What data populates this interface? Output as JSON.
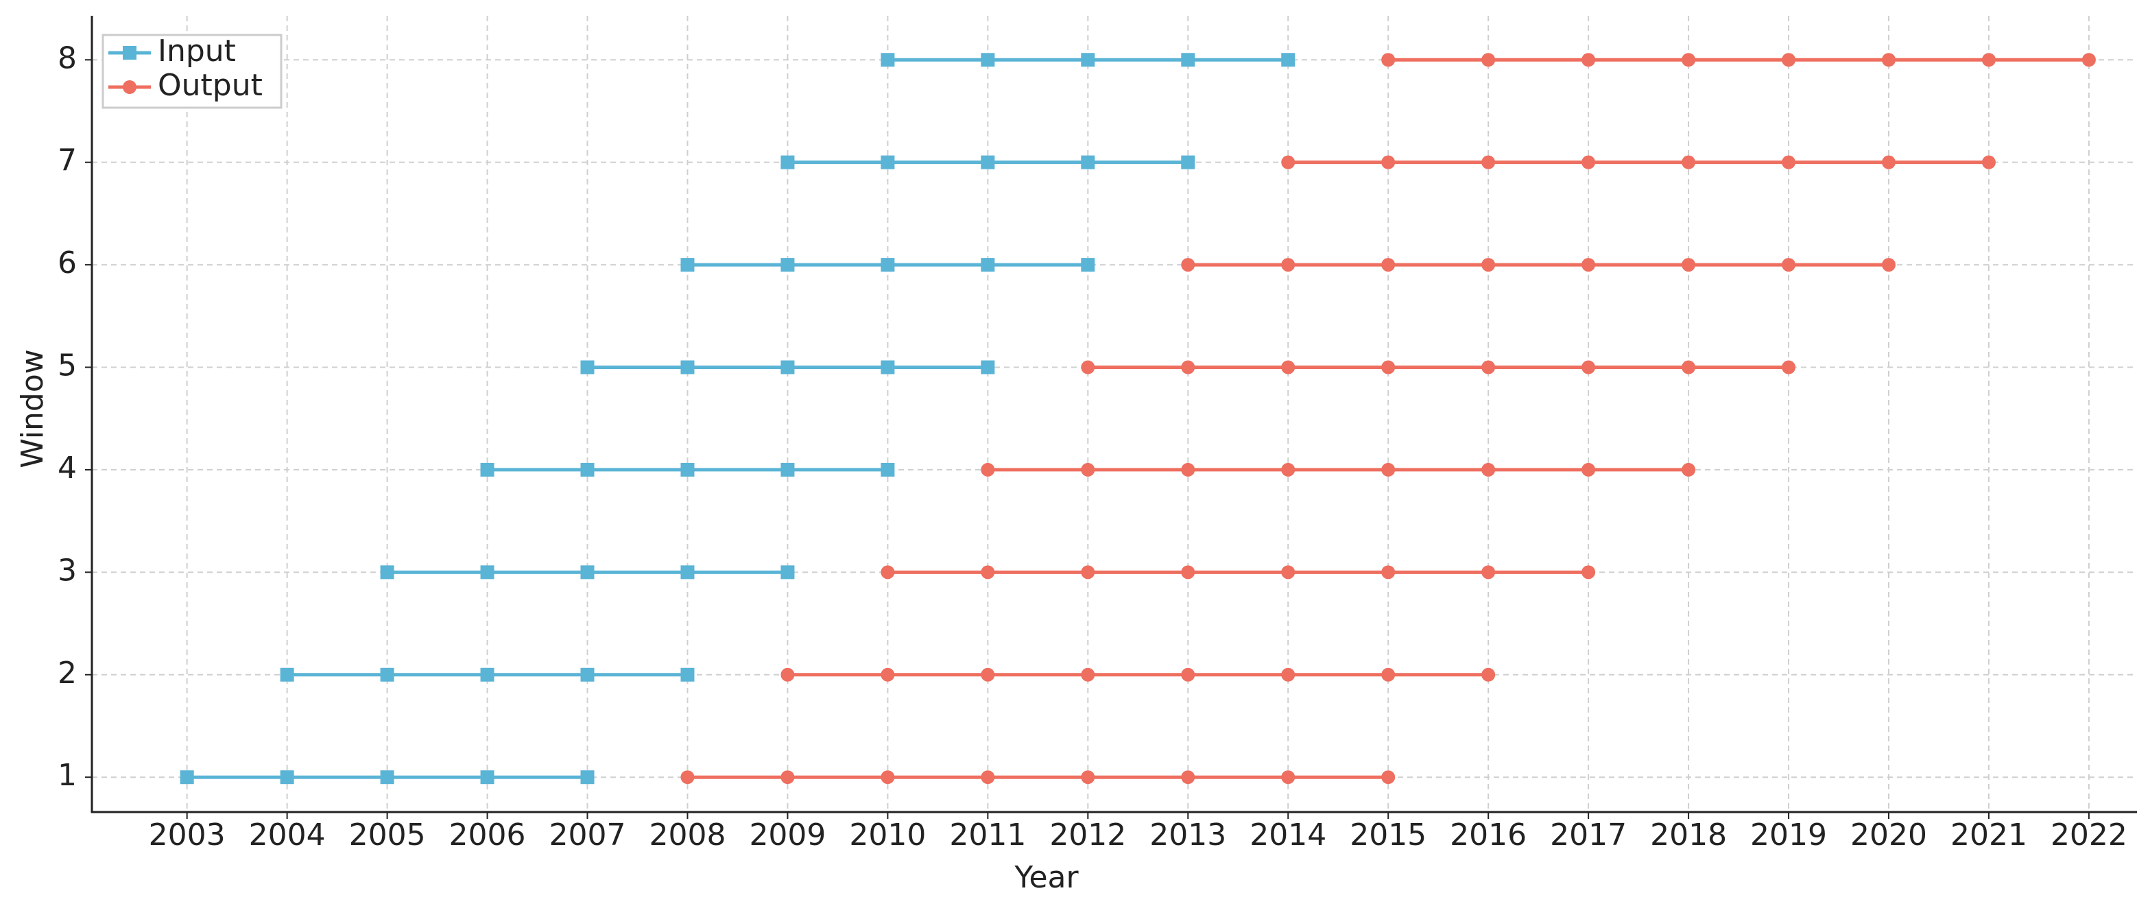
{
  "chart_data": {
    "type": "line",
    "xlabel": "Year",
    "ylabel": "Window",
    "xlim": [
      2002.05,
      2022.48
    ],
    "ylim": [
      0.66,
      8.43
    ],
    "xticks": [
      2003,
      2004,
      2005,
      2006,
      2007,
      2008,
      2009,
      2010,
      2011,
      2012,
      2013,
      2014,
      2015,
      2016,
      2017,
      2018,
      2019,
      2020,
      2021,
      2022
    ],
    "yticks": [
      1,
      2,
      3,
      4,
      5,
      6,
      7,
      8
    ],
    "grid": true,
    "legend": "upper left",
    "series": [
      {
        "name": "Input",
        "color": "#5ab4d6",
        "marker": "square",
        "x": [
          2003,
          2004,
          2005,
          2006,
          2007,
          null,
          2004,
          2005,
          2006,
          2007,
          2008,
          null,
          2005,
          2006,
          2007,
          2008,
          2009,
          null,
          2006,
          2007,
          2008,
          2009,
          2010,
          null,
          2007,
          2008,
          2009,
          2010,
          2011,
          null,
          2008,
          2009,
          2010,
          2011,
          2012,
          null,
          2009,
          2010,
          2011,
          2012,
          2013,
          null,
          2010,
          2011,
          2012,
          2013,
          2014
        ],
        "values": [
          1,
          1,
          1,
          1,
          1,
          null,
          2,
          2,
          2,
          2,
          2,
          null,
          3,
          3,
          3,
          3,
          3,
          null,
          4,
          4,
          4,
          4,
          4,
          null,
          5,
          5,
          5,
          5,
          5,
          null,
          6,
          6,
          6,
          6,
          6,
          null,
          7,
          7,
          7,
          7,
          7,
          null,
          8,
          8,
          8,
          8,
          8
        ]
      },
      {
        "name": "Output",
        "color": "#ee6e5f",
        "marker": "circle",
        "x": [
          2008,
          2009,
          2010,
          2011,
          2012,
          2013,
          2014,
          2015,
          null,
          2009,
          2010,
          2011,
          2012,
          2013,
          2014,
          2015,
          2016,
          null,
          2010,
          2011,
          2012,
          2013,
          2014,
          2015,
          2016,
          2017,
          null,
          2011,
          2012,
          2013,
          2014,
          2015,
          2016,
          2017,
          2018,
          null,
          2012,
          2013,
          2014,
          2015,
          2016,
          2017,
          2018,
          2019,
          null,
          2013,
          2014,
          2015,
          2016,
          2017,
          2018,
          2019,
          2020,
          null,
          2014,
          2015,
          2016,
          2017,
          2018,
          2019,
          2020,
          2021,
          null,
          2015,
          2016,
          2017,
          2018,
          2019,
          2020,
          2021,
          2022
        ],
        "values": [
          1,
          1,
          1,
          1,
          1,
          1,
          1,
          1,
          null,
          2,
          2,
          2,
          2,
          2,
          2,
          2,
          2,
          null,
          3,
          3,
          3,
          3,
          3,
          3,
          3,
          3,
          null,
          4,
          4,
          4,
          4,
          4,
          4,
          4,
          4,
          null,
          5,
          5,
          5,
          5,
          5,
          5,
          5,
          5,
          null,
          6,
          6,
          6,
          6,
          6,
          6,
          6,
          6,
          null,
          7,
          7,
          7,
          7,
          7,
          7,
          7,
          7,
          null,
          8,
          8,
          8,
          8,
          8,
          8,
          8,
          8
        ]
      }
    ]
  }
}
